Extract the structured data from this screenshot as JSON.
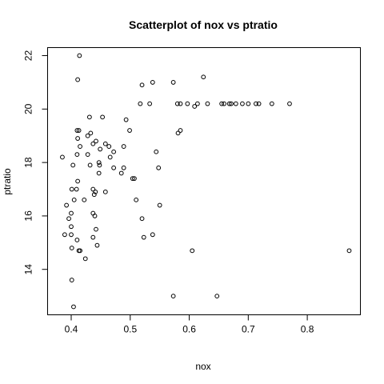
{
  "chart_data": {
    "type": "scatter",
    "title": "Scatterplot of nox vs ptratio",
    "xlabel": "nox",
    "ylabel": "ptratio",
    "xlim": [
      0.36,
      0.89
    ],
    "ylim": [
      12.3,
      22.3
    ],
    "xticks": [
      0.4,
      0.5,
      0.6,
      0.7,
      0.8
    ],
    "xtick_labels": [
      "0.4",
      "0.5",
      "0.6",
      "0.7",
      "0.8"
    ],
    "yticks": [
      14,
      16,
      18,
      20,
      22
    ],
    "ytick_labels": [
      "14",
      "16",
      "18",
      "20",
      "22"
    ],
    "grid": false,
    "legend": "none",
    "points": [
      [
        0.414,
        22.0
      ],
      [
        0.411,
        21.1
      ],
      [
        0.624,
        21.2
      ],
      [
        0.573,
        21.0
      ],
      [
        0.538,
        21.0
      ],
      [
        0.52,
        20.9
      ],
      [
        0.517,
        20.2
      ],
      [
        0.533,
        20.2
      ],
      [
        0.58,
        20.2
      ],
      [
        0.585,
        20.2
      ],
      [
        0.597,
        20.2
      ],
      [
        0.609,
        20.1
      ],
      [
        0.614,
        20.2
      ],
      [
        0.631,
        20.2
      ],
      [
        0.655,
        20.2
      ],
      [
        0.659,
        20.2
      ],
      [
        0.668,
        20.2
      ],
      [
        0.671,
        20.2
      ],
      [
        0.679,
        20.2
      ],
      [
        0.69,
        20.2
      ],
      [
        0.7,
        20.2
      ],
      [
        0.713,
        20.2
      ],
      [
        0.718,
        20.2
      ],
      [
        0.74,
        20.2
      ],
      [
        0.77,
        20.2
      ],
      [
        0.581,
        19.1
      ],
      [
        0.585,
        19.2
      ],
      [
        0.431,
        19.7
      ],
      [
        0.453,
        19.7
      ],
      [
        0.493,
        19.6
      ],
      [
        0.499,
        19.2
      ],
      [
        0.41,
        19.2
      ],
      [
        0.413,
        19.2
      ],
      [
        0.428,
        19.0
      ],
      [
        0.433,
        19.1
      ],
      [
        0.411,
        18.9
      ],
      [
        0.442,
        18.8
      ],
      [
        0.415,
        18.6
      ],
      [
        0.458,
        18.7
      ],
      [
        0.464,
        18.6
      ],
      [
        0.489,
        18.6
      ],
      [
        0.437,
        18.7
      ],
      [
        0.449,
        18.5
      ],
      [
        0.544,
        18.4
      ],
      [
        0.472,
        18.4
      ],
      [
        0.385,
        18.2
      ],
      [
        0.41,
        18.3
      ],
      [
        0.428,
        18.3
      ],
      [
        0.447,
        18.0
      ],
      [
        0.466,
        18.2
      ],
      [
        0.403,
        17.9
      ],
      [
        0.432,
        17.9
      ],
      [
        0.448,
        17.9
      ],
      [
        0.472,
        17.8
      ],
      [
        0.485,
        17.6
      ],
      [
        0.489,
        17.8
      ],
      [
        0.548,
        17.8
      ],
      [
        0.447,
        17.6
      ],
      [
        0.507,
        17.4
      ],
      [
        0.504,
        17.4
      ],
      [
        0.411,
        17.3
      ],
      [
        0.401,
        17.0
      ],
      [
        0.409,
        17.0
      ],
      [
        0.437,
        17.0
      ],
      [
        0.422,
        16.6
      ],
      [
        0.439,
        16.8
      ],
      [
        0.441,
        16.9
      ],
      [
        0.458,
        16.9
      ],
      [
        0.392,
        16.4
      ],
      [
        0.405,
        16.6
      ],
      [
        0.51,
        16.6
      ],
      [
        0.55,
        16.4
      ],
      [
        0.396,
        15.9
      ],
      [
        0.4,
        16.1
      ],
      [
        0.437,
        16.1
      ],
      [
        0.44,
        16.0
      ],
      [
        0.52,
        15.9
      ],
      [
        0.4,
        15.6
      ],
      [
        0.442,
        15.5
      ],
      [
        0.389,
        15.3
      ],
      [
        0.4,
        15.3
      ],
      [
        0.437,
        15.2
      ],
      [
        0.523,
        15.2
      ],
      [
        0.538,
        15.3
      ],
      [
        0.41,
        15.1
      ],
      [
        0.444,
        14.9
      ],
      [
        0.401,
        14.8
      ],
      [
        0.413,
        14.7
      ],
      [
        0.415,
        14.7
      ],
      [
        0.605,
        14.7
      ],
      [
        0.871,
        14.7
      ],
      [
        0.424,
        14.4
      ],
      [
        0.401,
        13.6
      ],
      [
        0.573,
        13.0
      ],
      [
        0.647,
        13.0
      ],
      [
        0.404,
        12.6
      ]
    ]
  }
}
